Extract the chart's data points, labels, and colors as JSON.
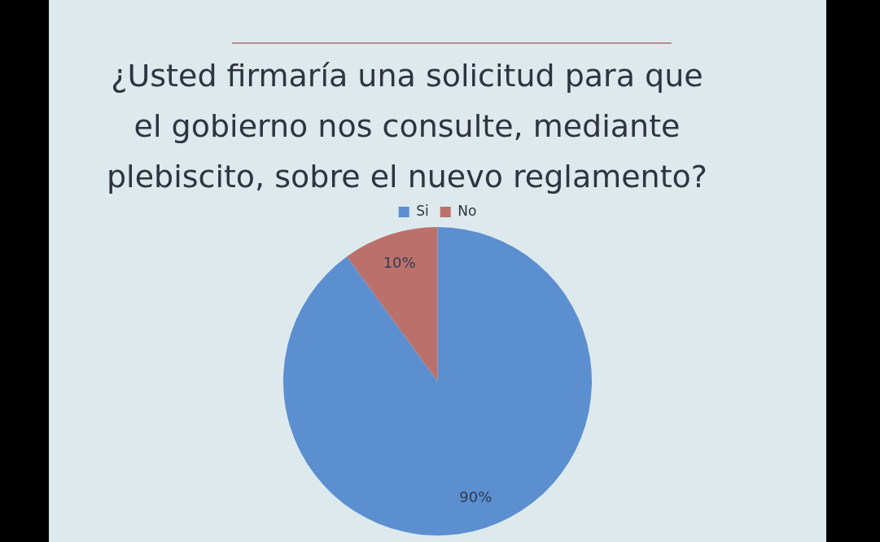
{
  "chart_data": {
    "type": "pie",
    "title": "¿Usted firmaría una solicitud para que el gobierno nos consulte, mediante plebiscito, sobre el nuevo reglamento?",
    "categories": [
      "Si",
      "No"
    ],
    "values": [
      90,
      10
    ],
    "colors": [
      "#5b8fd0",
      "#bb716b"
    ],
    "value_labels": [
      "90%",
      "10%"
    ],
    "legend": "top"
  }
}
